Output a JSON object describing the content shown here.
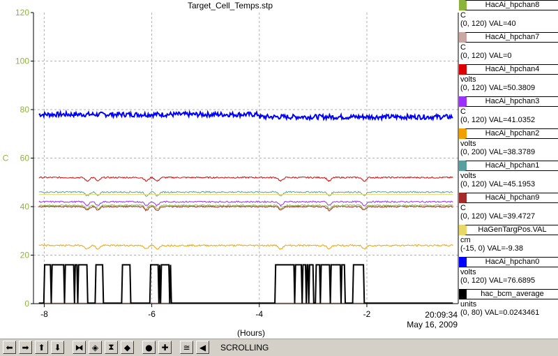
{
  "chart_data": {
    "type": "line",
    "title": "Target_Cell_Temps.stp",
    "xlabel": "(Hours)",
    "ylabel": "C",
    "xlim": [
      -8.2,
      -0.3
    ],
    "ylim": [
      0,
      120
    ],
    "x_ticks": [
      -8,
      -6,
      -4,
      -2
    ],
    "y_ticks": [
      0,
      20,
      40,
      60,
      80,
      100,
      120
    ],
    "grid": true,
    "series": [
      {
        "name": "HacAi_hpchan0",
        "color": "#0000ff",
        "base": 78,
        "noise": 1.0,
        "width": 2
      },
      {
        "name": "HacAi_hpchan4",
        "color": "#dd0000",
        "base": 52,
        "noise": 0.3,
        "width": 1
      },
      {
        "name": "HacAi_hpchan1",
        "color": "#5b9ea0",
        "base": 46,
        "noise": 0.3,
        "width": 1
      },
      {
        "name": "HacAi_hpchan3",
        "color": "#9b30ff",
        "base": 42,
        "noise": 0.3,
        "width": 1
      },
      {
        "name": "HacAi_hpchan9",
        "color": "#a52a2a",
        "base": 40,
        "noise": 0.3,
        "width": 1
      },
      {
        "name": "HacAi_hpchan8",
        "color": "#8cb43c",
        "base": 40.5,
        "noise": 0.3,
        "width": 1
      },
      {
        "name": "HaGenTargPos.VAL",
        "color": "#e8d86a",
        "base": 45,
        "noise": 0.0,
        "width": 1
      },
      {
        "name": "HacAi_hpchan2",
        "color": "#f0a000",
        "base": 24,
        "noise": 0.3,
        "width": 1
      },
      {
        "name": "HacAi_hpchan7",
        "color": "#c8a8a0",
        "base": 0.3,
        "noise": 0.0,
        "width": 1
      },
      {
        "name": "hac_bcm_average",
        "color": "#000000",
        "low": 0.2,
        "high": 16,
        "width": 2
      }
    ],
    "timestamp": [
      "20:09:34",
      "May 16, 2009"
    ]
  },
  "legend": [
    {
      "name": "HacAi_hpchan8",
      "color": "#8cb43c",
      "unit": "C",
      "range": "(0, 120) VAL=40"
    },
    {
      "name": "HacAi_hpchan7",
      "color": "#c8a8a0",
      "unit": "C",
      "range": "(0, 120) VAL=0"
    },
    {
      "name": "HacAi_hpchan4",
      "color": "#dd0000",
      "unit": "volts",
      "range": "(0, 120) VAL=50.3809"
    },
    {
      "name": "HacAi_hpchan3",
      "color": "#9b30ff",
      "unit": "C",
      "range": "(0, 120) VAL=41.0352"
    },
    {
      "name": "HacAi_hpchan2",
      "color": "#f0a000",
      "unit": "volts",
      "range": "(0, 200) VAL=38.3789"
    },
    {
      "name": "HacAi_hpchan1",
      "color": "#5b9ea0",
      "unit": "volts",
      "range": "(0, 120) VAL=45.1953"
    },
    {
      "name": "HacAi_hpchan9",
      "color": "#a52a2a",
      "unit": "C",
      "range": "(0, 120) VAL=39.4727"
    },
    {
      "name": "HaGenTargPos.VAL",
      "color": "#e8d86a",
      "unit": "cm",
      "range": "(-15, 0) VAL=-9.38"
    },
    {
      "name": "HacAi_hpchan0",
      "color": "#0000ff",
      "unit": "volts",
      "range": "(0, 120) VAL=76.6895"
    },
    {
      "name": "hac_bcm_average",
      "color": "#000000",
      "unit": "units",
      "range": "(0, 80) VAL=0.0243461"
    }
  ],
  "toolbar": {
    "buttons": [
      {
        "name": "scroll-left-button",
        "icon": "arrow-left-icon",
        "glyph": "⬅"
      },
      {
        "name": "scroll-right-button",
        "icon": "arrow-right-icon",
        "glyph": "➡"
      },
      {
        "name": "scroll-up-button",
        "icon": "arrow-up-icon",
        "glyph": "⬆"
      },
      {
        "name": "scroll-down-button",
        "icon": "arrow-down-icon",
        "glyph": "⬇"
      },
      {
        "name": "zoom-in-x-button",
        "icon": "zoom-in-x-icon",
        "glyph": "⧓"
      },
      {
        "name": "zoom-out-x-button",
        "icon": "zoom-out-x-icon",
        "glyph": "◈"
      },
      {
        "name": "zoom-in-y-button",
        "icon": "zoom-in-y-icon",
        "glyph": "⧗"
      },
      {
        "name": "zoom-out-y-button",
        "icon": "zoom-out-y-icon",
        "glyph": "◆"
      },
      {
        "name": "autoscale-button",
        "icon": "circle-icon",
        "glyph": "●"
      },
      {
        "name": "add-button",
        "icon": "plus-icon",
        "glyph": "✚"
      },
      {
        "name": "scale-button",
        "icon": "scale-icon",
        "glyph": "≅"
      },
      {
        "name": "scroll-mode-button",
        "icon": "scroll-mode-icon",
        "glyph": "◀"
      }
    ],
    "mode_label": "SCROLLING"
  }
}
